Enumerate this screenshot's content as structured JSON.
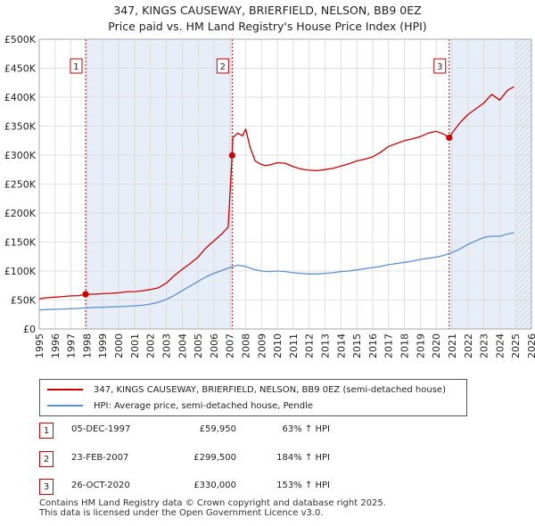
{
  "chart_data": {
    "type": "line",
    "title": "347, KINGS CAUSEWAY, BRIERFIELD, NELSON, BB9 0EZ",
    "subtitle": "Price paid vs. HM Land Registry's House Price Index (HPI)",
    "xlim": [
      1995,
      2026
    ],
    "ylim": [
      0,
      500000
    ],
    "x_ticks": [
      "1995",
      "1996",
      "1997",
      "1998",
      "1999",
      "2000",
      "2001",
      "2002",
      "2003",
      "2004",
      "2005",
      "2006",
      "2007",
      "2008",
      "2009",
      "2010",
      "2011",
      "2012",
      "2013",
      "2014",
      "2015",
      "2016",
      "2017",
      "2018",
      "2019",
      "2020",
      "2021",
      "2022",
      "2023",
      "2024",
      "2025",
      "2026"
    ],
    "y_ticks": [
      {
        "value": 0,
        "label": "£0"
      },
      {
        "value": 50000,
        "label": "£50K"
      },
      {
        "value": 100000,
        "label": "£100K"
      },
      {
        "value": 150000,
        "label": "£150K"
      },
      {
        "value": 200000,
        "label": "£200K"
      },
      {
        "value": 250000,
        "label": "£250K"
      },
      {
        "value": 300000,
        "label": "£300K"
      },
      {
        "value": 350000,
        "label": "£350K"
      },
      {
        "value": 400000,
        "label": "£400K"
      },
      {
        "value": 450000,
        "label": "£450K"
      },
      {
        "value": 500000,
        "label": "£500K"
      }
    ],
    "future_shade_from": 2025.0,
    "series": [
      {
        "name": "347, KINGS CAUSEWAY, BRIERFIELD, NELSON, BB9 0EZ (semi-detached house)",
        "color": "#cc0000",
        "x": [
          1995.0,
          1995.5,
          1996.0,
          1996.5,
          1997.0,
          1997.5,
          1997.92,
          1998.5,
          1999.0,
          1999.5,
          2000.0,
          2000.5,
          2001.0,
          2001.5,
          2002.0,
          2002.5,
          2003.0,
          2003.5,
          2004.0,
          2004.5,
          2005.0,
          2005.5,
          2006.0,
          2006.5,
          2006.9,
          2007.15,
          2007.2,
          2007.5,
          2007.8,
          2008.0,
          2008.3,
          2008.6,
          2008.9,
          2009.2,
          2009.5,
          2010.0,
          2010.5,
          2011.0,
          2011.5,
          2012.0,
          2012.5,
          2013.0,
          2013.5,
          2014.0,
          2014.5,
          2015.0,
          2015.5,
          2016.0,
          2016.5,
          2017.0,
          2017.5,
          2018.0,
          2018.5,
          2019.0,
          2019.5,
          2020.0,
          2020.5,
          2020.82,
          2021.0,
          2021.5,
          2022.0,
          2022.5,
          2023.0,
          2023.5,
          2024.0,
          2024.5,
          2024.9
        ],
        "values": [
          52000,
          54000,
          55000,
          56000,
          57000,
          57500,
          59950,
          60000,
          61000,
          61500,
          62500,
          64000,
          64500,
          66000,
          68000,
          71000,
          79000,
          92000,
          103000,
          113000,
          124000,
          140000,
          152000,
          164000,
          176000,
          299500,
          330000,
          338000,
          333000,
          345000,
          312000,
          290000,
          285000,
          282000,
          283000,
          287000,
          286000,
          280000,
          276000,
          274000,
          273000,
          275000,
          277000,
          281000,
          285000,
          290000,
          293000,
          297000,
          305000,
          315000,
          320000,
          325000,
          328000,
          332000,
          338000,
          341000,
          336000,
          330000,
          338000,
          356000,
          370000,
          380000,
          390000,
          405000,
          395000,
          412000,
          418000
        ]
      },
      {
        "name": "HPI: Average price, semi-detached house, Pendle",
        "color": "#5b8fd0",
        "x": [
          1995.0,
          1995.5,
          1996.0,
          1996.5,
          1997.0,
          1997.5,
          1998.0,
          1998.5,
          1999.0,
          1999.5,
          2000.0,
          2000.5,
          2001.0,
          2001.5,
          2002.0,
          2002.5,
          2003.0,
          2003.5,
          2004.0,
          2004.5,
          2005.0,
          2005.5,
          2006.0,
          2006.5,
          2007.0,
          2007.5,
          2008.0,
          2008.5,
          2009.0,
          2009.5,
          2010.0,
          2010.5,
          2011.0,
          2011.5,
          2012.0,
          2012.5,
          2013.0,
          2013.5,
          2014.0,
          2014.5,
          2015.0,
          2015.5,
          2016.0,
          2016.5,
          2017.0,
          2017.5,
          2018.0,
          2018.5,
          2019.0,
          2019.5,
          2020.0,
          2020.5,
          2021.0,
          2021.5,
          2022.0,
          2022.5,
          2023.0,
          2023.5,
          2024.0,
          2024.5,
          2024.9
        ],
        "values": [
          33000,
          33500,
          34000,
          34500,
          35000,
          35500,
          36500,
          37000,
          37500,
          38000,
          38500,
          39000,
          40000,
          41000,
          43000,
          46000,
          51000,
          58000,
          66000,
          74000,
          82000,
          90000,
          96000,
          101000,
          106000,
          110000,
          108000,
          103000,
          100000,
          99000,
          100000,
          99000,
          97000,
          96000,
          95000,
          95000,
          96000,
          97000,
          99000,
          100000,
          102000,
          104000,
          106000,
          108000,
          111000,
          113000,
          115000,
          117000,
          120000,
          122000,
          124000,
          127000,
          132000,
          138000,
          146000,
          152000,
          158000,
          160000,
          160000,
          164000,
          166000
        ]
      }
    ],
    "sales": [
      {
        "n": "1",
        "x": 1997.92,
        "price": 59950,
        "date": "05-DEC-1997",
        "price_label": "£59,950",
        "hpi": "63% ↑ HPI"
      },
      {
        "n": "2",
        "x": 2007.15,
        "price": 299500,
        "date": "23-FEB-2007",
        "price_label": "£299,500",
        "hpi": "184% ↑ HPI"
      },
      {
        "n": "3",
        "x": 2020.82,
        "price": 330000,
        "date": "26-OCT-2020",
        "price_label": "£330,000",
        "hpi": "153% ↑ HPI"
      }
    ]
  },
  "legend": {
    "red_label": "347, KINGS CAUSEWAY, BRIERFIELD, NELSON, BB9 0EZ (semi-detached house)",
    "blue_label": "HPI: Average price, semi-detached house, Pendle"
  },
  "footer": {
    "line1": "Contains HM Land Registry data © Crown copyright and database right 2025.",
    "line2": "This data is licensed under the Open Government Licence v3.0."
  }
}
